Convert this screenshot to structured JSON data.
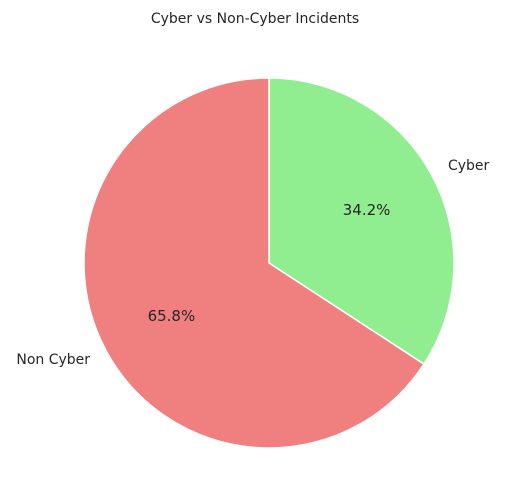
{
  "chart_data": {
    "type": "pie",
    "title": "Cyber vs Non-Cyber Incidents",
    "slices": [
      {
        "label": "Cyber",
        "value": 34.2,
        "pct_label": "34.2%",
        "color": "#90ee90"
      },
      {
        "label": "Non Cyber",
        "value": 65.8,
        "pct_label": "65.8%",
        "color": "#f08080"
      }
    ],
    "start_angle_deg": 90,
    "direction": "clockwise",
    "edge_color": "#ffffff",
    "legend": "none"
  }
}
